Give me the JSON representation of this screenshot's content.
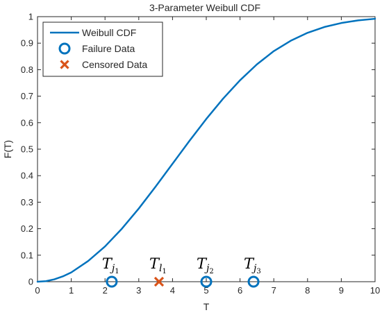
{
  "chart_data": {
    "type": "line",
    "title": "3-Parameter Weibull CDF",
    "xlabel": "T",
    "ylabel": "F(T)",
    "xlim": [
      0,
      10
    ],
    "ylim": [
      0,
      1
    ],
    "x_ticks": [
      "0",
      "1",
      "2",
      "3",
      "4",
      "5",
      "6",
      "7",
      "8",
      "9",
      "10"
    ],
    "y_ticks": [
      "0",
      "0.1",
      "0.2",
      "0.3",
      "0.4",
      "0.5",
      "0.6",
      "0.7",
      "0.8",
      "0.9",
      "1"
    ],
    "grid": false,
    "legend_position": "top-left",
    "series": [
      {
        "name": "Weibull CDF",
        "kind": "line",
        "color": "#0072BD",
        "x": [
          0,
          0.25,
          0.5,
          0.75,
          1,
          1.5,
          2,
          2.5,
          3,
          3.5,
          4,
          4.5,
          5,
          5.5,
          6,
          6.5,
          7,
          7.5,
          8,
          8.5,
          9,
          9.5,
          10
        ],
        "y": [
          0,
          0.002,
          0.009,
          0.02,
          0.035,
          0.078,
          0.133,
          0.2,
          0.276,
          0.359,
          0.445,
          0.531,
          0.614,
          0.691,
          0.76,
          0.82,
          0.87,
          0.909,
          0.939,
          0.961,
          0.976,
          0.986,
          0.992
        ]
      },
      {
        "name": "Failure Data",
        "kind": "marker-circle",
        "color": "#0072BD",
        "points": [
          {
            "x": 2.2,
            "y": 0,
            "label": {
              "main": "T",
              "sub": "j",
              "subsub": "1"
            }
          },
          {
            "x": 5.0,
            "y": 0,
            "label": {
              "main": "T",
              "sub": "j",
              "subsub": "2"
            }
          },
          {
            "x": 6.4,
            "y": 0,
            "label": {
              "main": "T",
              "sub": "j",
              "subsub": "3"
            }
          }
        ]
      },
      {
        "name": "Censored Data",
        "kind": "marker-x",
        "color": "#D95319",
        "points": [
          {
            "x": 3.6,
            "y": 0,
            "label": {
              "main": "T",
              "sub": "l",
              "subsub": "1"
            }
          }
        ]
      }
    ]
  }
}
